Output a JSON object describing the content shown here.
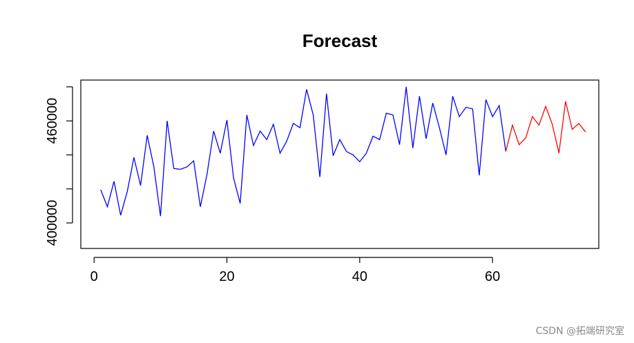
{
  "chart_data": {
    "type": "line",
    "title": "Forecast",
    "xlabel": "",
    "ylabel": "",
    "xlim": [
      -2,
      76
    ],
    "ylim": [
      385000,
      484000
    ],
    "x_ticks": [
      0,
      20,
      40,
      60
    ],
    "y_ticks": [
      400000,
      460000
    ],
    "y_minor_ticks": [
      400000,
      420000,
      440000,
      460000,
      480000
    ],
    "grid": false,
    "series": [
      {
        "color": "#0000ff",
        "x": [
          1,
          2,
          3,
          4,
          5,
          6,
          7,
          8,
          9,
          10,
          11,
          12,
          13,
          14,
          15,
          16,
          17,
          18,
          19,
          20,
          21,
          22,
          23,
          24,
          25,
          26,
          27,
          28,
          29,
          30,
          31,
          32,
          33,
          34,
          35,
          36,
          37,
          38,
          39,
          40,
          41,
          42,
          43,
          44,
          45,
          46,
          47,
          48,
          49,
          50,
          51,
          52,
          53,
          54,
          55,
          56,
          57,
          58,
          59,
          60,
          61,
          62
        ],
        "y": [
          419500,
          409500,
          424500,
          404500,
          418500,
          438500,
          422000,
          451500,
          433000,
          404000,
          460000,
          432000,
          431500,
          433000,
          436500,
          409500,
          428500,
          454000,
          441000,
          460500,
          426500,
          411500,
          463500,
          445500,
          454000,
          449000,
          458000,
          441000,
          448000,
          458500,
          456000,
          478500,
          463500,
          427000,
          476000,
          439500,
          449000,
          442000,
          440000,
          436000,
          441000,
          451000,
          449000,
          464500,
          463500,
          446000,
          480000,
          444000,
          474500,
          449500,
          470500,
          456000,
          440000,
          474500,
          462500,
          468000,
          467000,
          428000,
          472500,
          462500,
          469000,
          442000
        ]
      },
      {
        "color": "#ff0000",
        "x": [
          62,
          63,
          64,
          65,
          66,
          67,
          68,
          69,
          70,
          71,
          72,
          73,
          74
        ],
        "y": [
          442000,
          457500,
          446000,
          450000,
          462500,
          457500,
          468500,
          458000,
          441000,
          471500,
          455000,
          458500,
          453500
        ]
      }
    ]
  },
  "watermark": "CSDN @拓端研究室",
  "colors": {
    "history_series": "#0000ff",
    "forecast_series": "#ff0000",
    "axis": "#000000"
  }
}
